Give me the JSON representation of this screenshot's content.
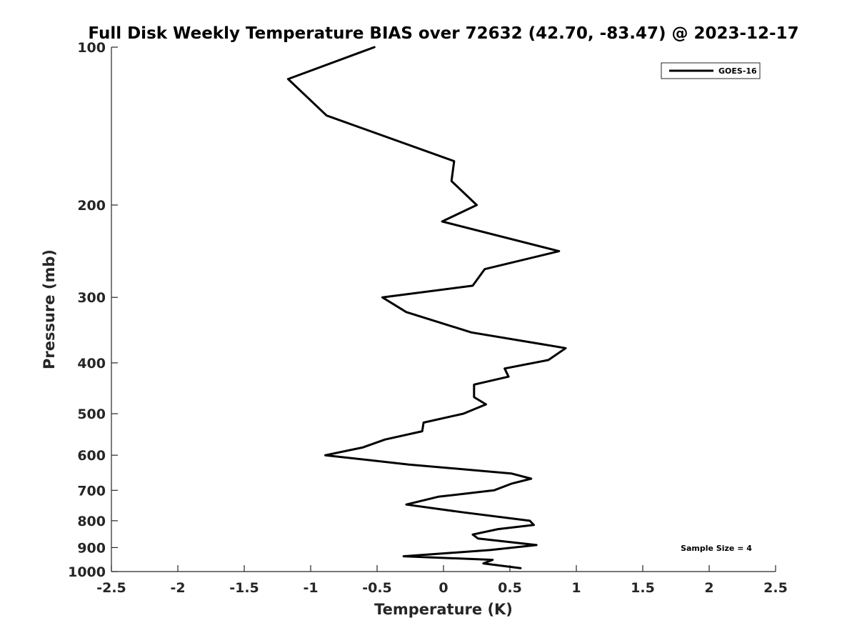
{
  "chart_data": {
    "type": "line",
    "title": "Full Disk Weekly Temperature BIAS over 72632 (42.70, -83.47) @ 2023-12-17",
    "xlabel": "Temperature (K)",
    "ylabel": "Pressure (mb)",
    "xlim": [
      -2.5,
      2.5
    ],
    "ylim": [
      100,
      1000
    ],
    "y_scale": "log",
    "y_reversed": true,
    "grid": false,
    "legend_position": "top-right",
    "x_ticks": [
      "-2.5",
      "-2",
      "-1.5",
      "-1",
      "-0.5",
      "0",
      "0.5",
      "1",
      "1.5",
      "2",
      "2.5"
    ],
    "y_ticks": [
      "100",
      "200",
      "300",
      "400",
      "500",
      "600",
      "700",
      "800",
      "900",
      "1000"
    ],
    "annotation": "Sample Size = 4",
    "series": [
      {
        "name": "GOES-16",
        "color": "#000000",
        "x": [
          -0.52,
          -1.17,
          -0.88,
          0.08,
          0.06,
          0.25,
          -0.01,
          0.87,
          0.31,
          0.22,
          -0.46,
          -0.28,
          0.21,
          0.92,
          0.79,
          0.46,
          0.49,
          0.23,
          0.23,
          0.32,
          0.15,
          -0.15,
          -0.16,
          -0.44,
          -0.61,
          -0.89,
          -0.26,
          0.51,
          0.66,
          0.51,
          0.38,
          -0.04,
          -0.28,
          0.13,
          0.65,
          0.68,
          0.41,
          0.22,
          0.26,
          0.7,
          0.35,
          -0.3,
          0.37,
          0.3,
          0.58
        ],
        "y": [
          100,
          115,
          135,
          165,
          180,
          200,
          215,
          245,
          265,
          285,
          300,
          320,
          350,
          375,
          395,
          410,
          425,
          440,
          465,
          480,
          500,
          520,
          540,
          560,
          580,
          600,
          625,
          650,
          665,
          680,
          700,
          720,
          745,
          770,
          800,
          815,
          830,
          850,
          865,
          890,
          910,
          935,
          950,
          965,
          985
        ]
      }
    ]
  }
}
